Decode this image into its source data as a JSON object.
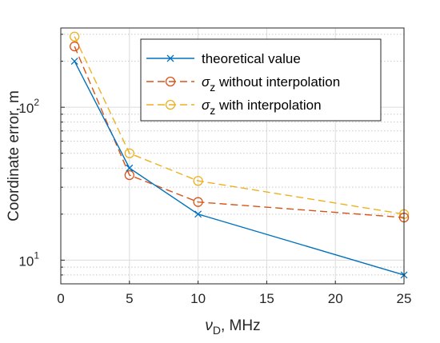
{
  "chart_data": {
    "type": "line",
    "x_axis": {
      "label_symbol": "ν",
      "label_subscript": "D",
      "label_rest": ", MHz",
      "range": [
        0,
        25
      ],
      "ticks": [
        0,
        5,
        10,
        15,
        20,
        25
      ],
      "tick_labels": [
        "0",
        "5",
        "10",
        "15",
        "20",
        "25"
      ],
      "tick_positions": [
        0,
        1,
        2,
        3,
        4,
        5
      ],
      "scale": "piecewise (labels 0,5,10,15,20,25 equally spaced)"
    },
    "y_axis": {
      "label": "Coordinate error, m",
      "scale": "log",
      "range": [
        7,
        330
      ],
      "tick_labels": [
        {
          "value": 10,
          "base": "10",
          "exp": "1"
        },
        {
          "value": 100,
          "base": "10",
          "exp": "2"
        }
      ]
    },
    "grid": true,
    "legend": {
      "placement": "top-right"
    },
    "series": [
      {
        "name": "theoretical value",
        "legend_parts": [
          {
            "text": "theoretical value"
          }
        ],
        "color": "#0072BD",
        "marker": "x",
        "line": "solid",
        "x": [
          1,
          5,
          10,
          25
        ],
        "y": [
          200,
          40,
          20,
          8
        ]
      },
      {
        "name": "σz without interpolation",
        "legend_parts": [
          {
            "text": "σ",
            "italic": true
          },
          {
            "text": "z",
            "sub": true
          },
          {
            "text": " without interpolation"
          }
        ],
        "color": "#D95319",
        "marker": "o",
        "line": "dashed",
        "x": [
          1,
          5,
          10,
          25
        ],
        "y": [
          250,
          36,
          24,
          19
        ]
      },
      {
        "name": "σz with interpolation",
        "legend_parts": [
          {
            "text": "σ",
            "italic": true
          },
          {
            "text": "z",
            "sub": true
          },
          {
            "text": " with interpolation"
          }
        ],
        "color": "#EDB120",
        "marker": "o",
        "line": "dashed",
        "x": [
          1,
          5,
          10,
          25
        ],
        "y": [
          290,
          50,
          33,
          20
        ]
      }
    ]
  }
}
